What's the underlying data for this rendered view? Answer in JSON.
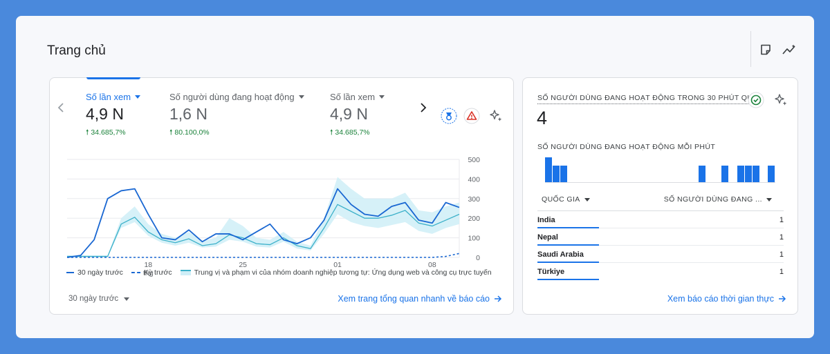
{
  "page": {
    "title": "Trang chủ"
  },
  "toolbar": {
    "icons": [
      "note-icon",
      "insights-icon"
    ]
  },
  "overview": {
    "metrics": [
      {
        "label": "Số lần xem",
        "value": "4,9 N",
        "change": "34.685,7%",
        "active": true
      },
      {
        "label": "Số người dùng đang hoạt động",
        "value": "1,6 N",
        "change": "80.100,0%",
        "active": false
      },
      {
        "label": "Số lần xem",
        "value": "4,9 N",
        "change": "34.685,7%",
        "active": false
      }
    ],
    "legend": {
      "current": "30 ngày trước",
      "previous": "Kỳ trước",
      "benchmark": "Trung vị và phạm vi của nhóm doanh nghiệp tương tự: Ứng dụng web và công cụ trực tuyến"
    },
    "period_selector": "30 ngày trước",
    "link": "Xem trang tổng quan nhanh về báo cáo"
  },
  "chart_data": {
    "type": "line",
    "x_ticks": [
      "18",
      "25",
      "01",
      "08"
    ],
    "x_tick_sub": "thg",
    "y_ticks": [
      "500",
      "400",
      "300",
      "200",
      "100",
      "0"
    ],
    "ylim": [
      0,
      500
    ],
    "series": [
      {
        "name": "30 ngày trước",
        "style": "solid",
        "color": "#1967d2",
        "values": [
          0,
          10,
          90,
          300,
          340,
          350,
          220,
          100,
          90,
          140,
          80,
          120,
          120,
          90,
          130,
          170,
          90,
          70,
          100,
          190,
          350,
          270,
          220,
          210,
          260,
          280,
          190,
          175,
          280,
          255
        ]
      },
      {
        "name": "Kỳ trước",
        "style": "dashed",
        "color": "#1967d2",
        "values": [
          0,
          0,
          0,
          0,
          0,
          0,
          0,
          0,
          0,
          0,
          0,
          0,
          0,
          0,
          0,
          0,
          0,
          0,
          0,
          0,
          0,
          0,
          0,
          0,
          0,
          0,
          0,
          0,
          5,
          20
        ]
      },
      {
        "name": "Trung vị và phạm vi của nhóm doanh nghiệp tương tự: Ứng dụng web và công cụ trực tuyến",
        "style": "median",
        "color": "#3bb0c9",
        "values": [
          5,
          5,
          5,
          5,
          170,
          205,
          130,
          90,
          75,
          95,
          60,
          70,
          115,
          100,
          70,
          65,
          100,
          60,
          45,
          150,
          270,
          235,
          200,
          200,
          215,
          240,
          175,
          160,
          190,
          220
        ],
        "range_low": [
          2,
          2,
          2,
          2,
          150,
          180,
          110,
          75,
          60,
          75,
          50,
          55,
          90,
          80,
          55,
          50,
          80,
          45,
          35,
          120,
          220,
          180,
          160,
          150,
          165,
          180,
          135,
          120,
          150,
          170
        ],
        "range_high": [
          10,
          10,
          10,
          10,
          200,
          260,
          170,
          120,
          100,
          130,
          85,
          100,
          200,
          160,
          100,
          90,
          130,
          80,
          60,
          200,
          410,
          350,
          300,
          300,
          300,
          330,
          240,
          230,
          260,
          280
        ]
      }
    ]
  },
  "realtime": {
    "title": "SỐ NGƯỜI DÙNG ĐANG HOẠT ĐỘNG TRONG 30 PHÚT QUA",
    "value": "4",
    "subtitle": "SỐ NGƯỜI DÙNG ĐANG HOẠT ĐỘNG MỖI PHÚT",
    "per_minute": [
      3,
      2,
      2,
      0,
      0,
      0,
      0,
      0,
      0,
      0,
      0,
      0,
      0,
      0,
      0,
      0,
      0,
      0,
      0,
      0,
      2,
      0,
      0,
      2,
      0,
      2,
      2,
      2,
      0,
      2
    ],
    "columns": {
      "country": "QUỐC GIA",
      "users": "SỐ NGƯỜI DÙNG ĐANG ..."
    },
    "rows": [
      {
        "country": "India",
        "value": "1"
      },
      {
        "country": "Nepal",
        "value": "1"
      },
      {
        "country": "Saudi Arabia",
        "value": "1"
      },
      {
        "country": "Türkiye",
        "value": "1"
      }
    ],
    "link": "Xem báo cáo thời gian thực"
  }
}
